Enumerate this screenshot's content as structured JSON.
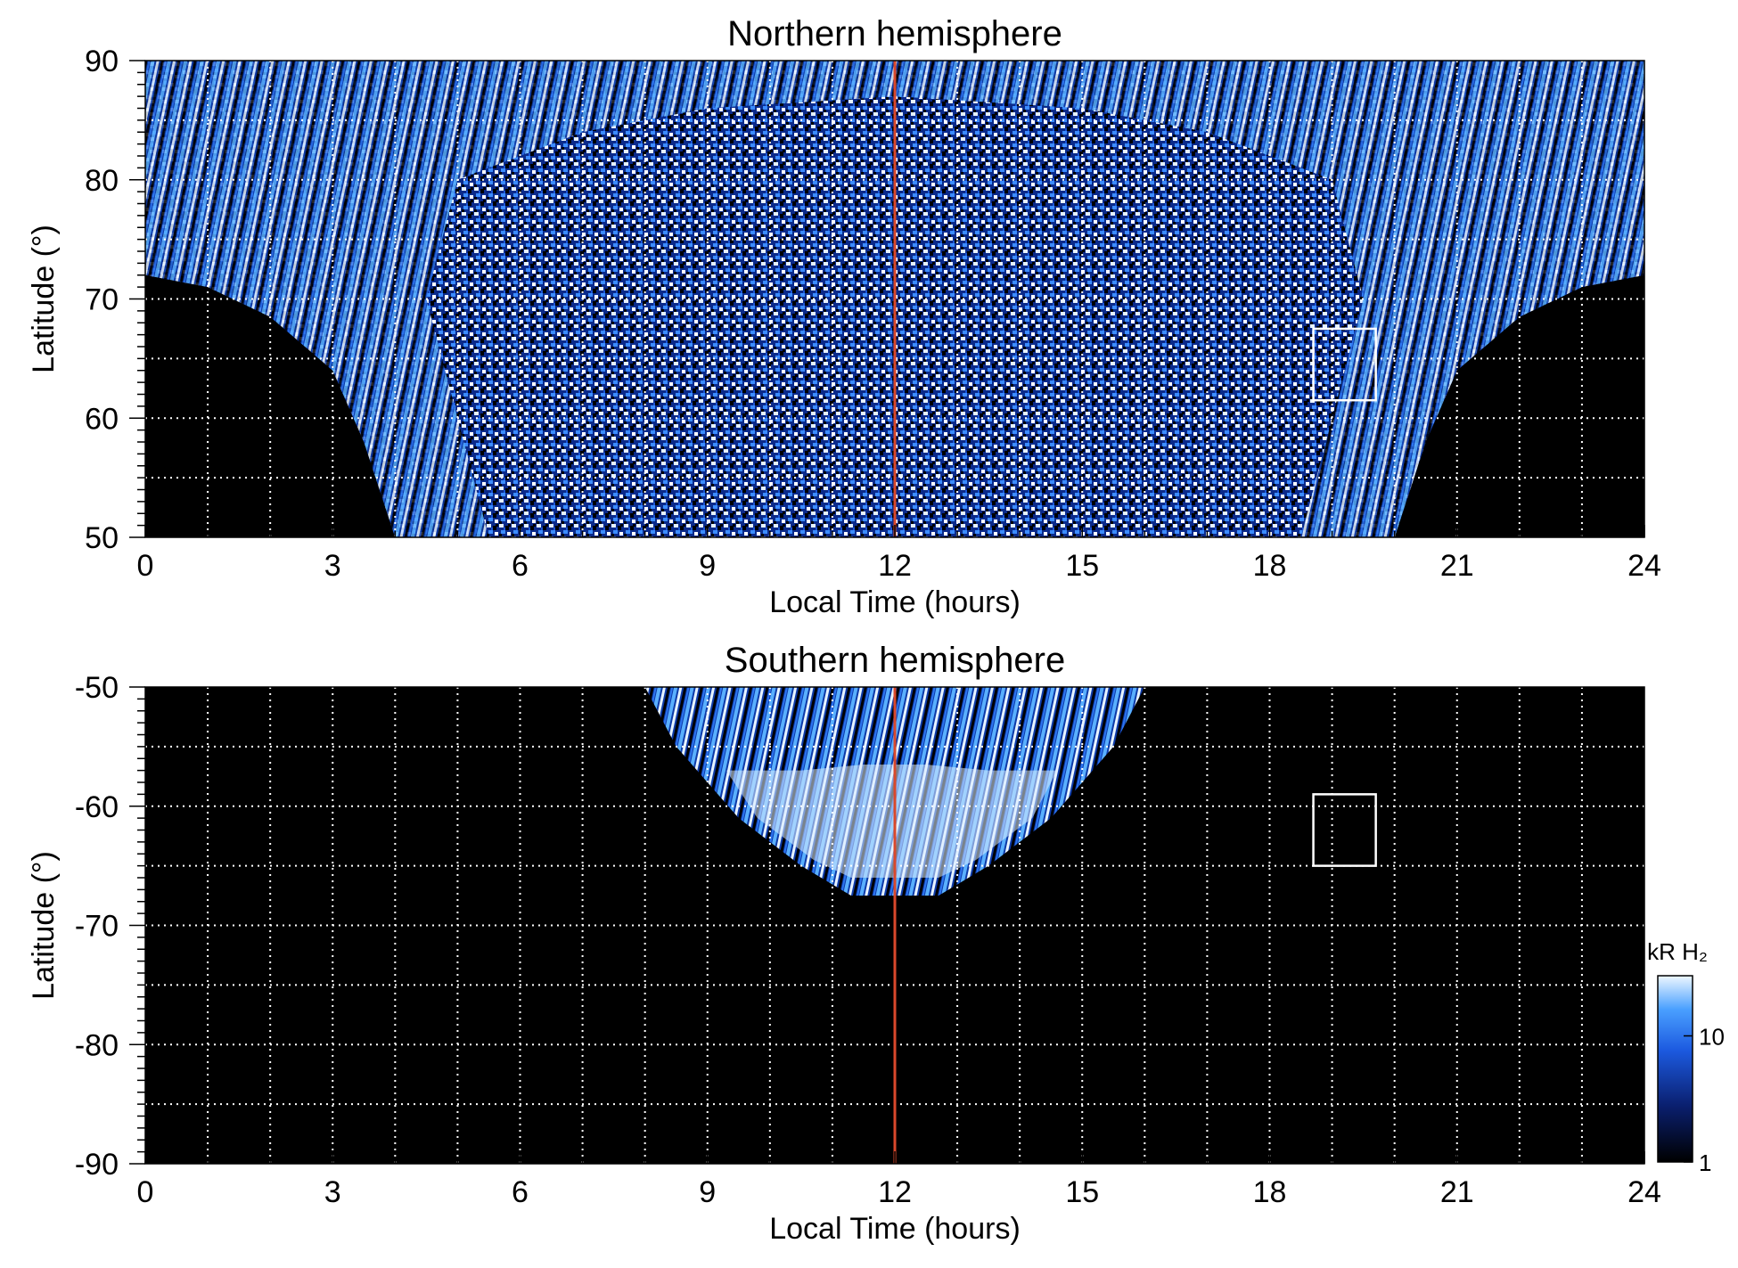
{
  "chart_data": [
    {
      "type": "heatmap",
      "title": "Northern hemisphere",
      "xlabel": "Local Time (hours)",
      "ylabel": "Latitude (°)",
      "xlim": [
        0,
        24
      ],
      "ylim": [
        50,
        90
      ],
      "x_ticks": [
        "0",
        "3",
        "6",
        "9",
        "12",
        "15",
        "18",
        "21",
        "24"
      ],
      "y_ticks": [
        "90",
        "80",
        "70",
        "60",
        "50"
      ],
      "x_tick_values": [
        0,
        3,
        6,
        9,
        12,
        15,
        18,
        21,
        24
      ],
      "y_tick_values": [
        90,
        80,
        70,
        60,
        50
      ],
      "grid": true,
      "grid_x_step": 1,
      "grid_y_step": 5,
      "marker_line_local_time": 12,
      "marker_line_color": "#d9482b",
      "box": {
        "lt": [
          18.7,
          19.7
        ],
        "lat": [
          61.5,
          67.5
        ]
      },
      "coverage": "lat >= 50 within LT 4–20 (bowl-shaped), lat >= 72 near LT 0 and 24",
      "colormap": [
        "#000000",
        "#0a1f6e",
        "#1c5ae0",
        "#4aa0ff",
        "#e8f4ff"
      ]
    },
    {
      "type": "heatmap",
      "title": "Southern hemisphere",
      "xlabel": "Local Time (hours)",
      "ylabel": "Latitude (°)",
      "xlim": [
        0,
        24
      ],
      "ylim": [
        -90,
        -50
      ],
      "x_ticks": [
        "0",
        "3",
        "6",
        "9",
        "12",
        "15",
        "18",
        "21",
        "24"
      ],
      "y_ticks": [
        "-50",
        "-60",
        "-70",
        "-80",
        "-90"
      ],
      "x_tick_values": [
        0,
        3,
        6,
        9,
        12,
        15,
        18,
        21,
        24
      ],
      "y_tick_values": [
        -50,
        -60,
        -70,
        -80,
        -90
      ],
      "grid": true,
      "grid_x_step": 1,
      "grid_y_step": 5,
      "marker_line_local_time": 12,
      "marker_line_color": "#d9482b",
      "box": {
        "lt": [
          18.7,
          19.7
        ],
        "lat": [
          -65,
          -59
        ]
      },
      "coverage": "lat >= -67.5 within LT 8–16 (bowl-shaped)",
      "colormap": [
        "#000000",
        "#0a1f6e",
        "#1c5ae0",
        "#4aa0ff",
        "#e8f4ff"
      ]
    }
  ],
  "colorbar": {
    "label": "kR H₂",
    "ticks": [
      "10",
      "1"
    ],
    "tick_values": [
      10,
      1
    ],
    "scale": "log",
    "range": [
      1,
      30
    ]
  }
}
